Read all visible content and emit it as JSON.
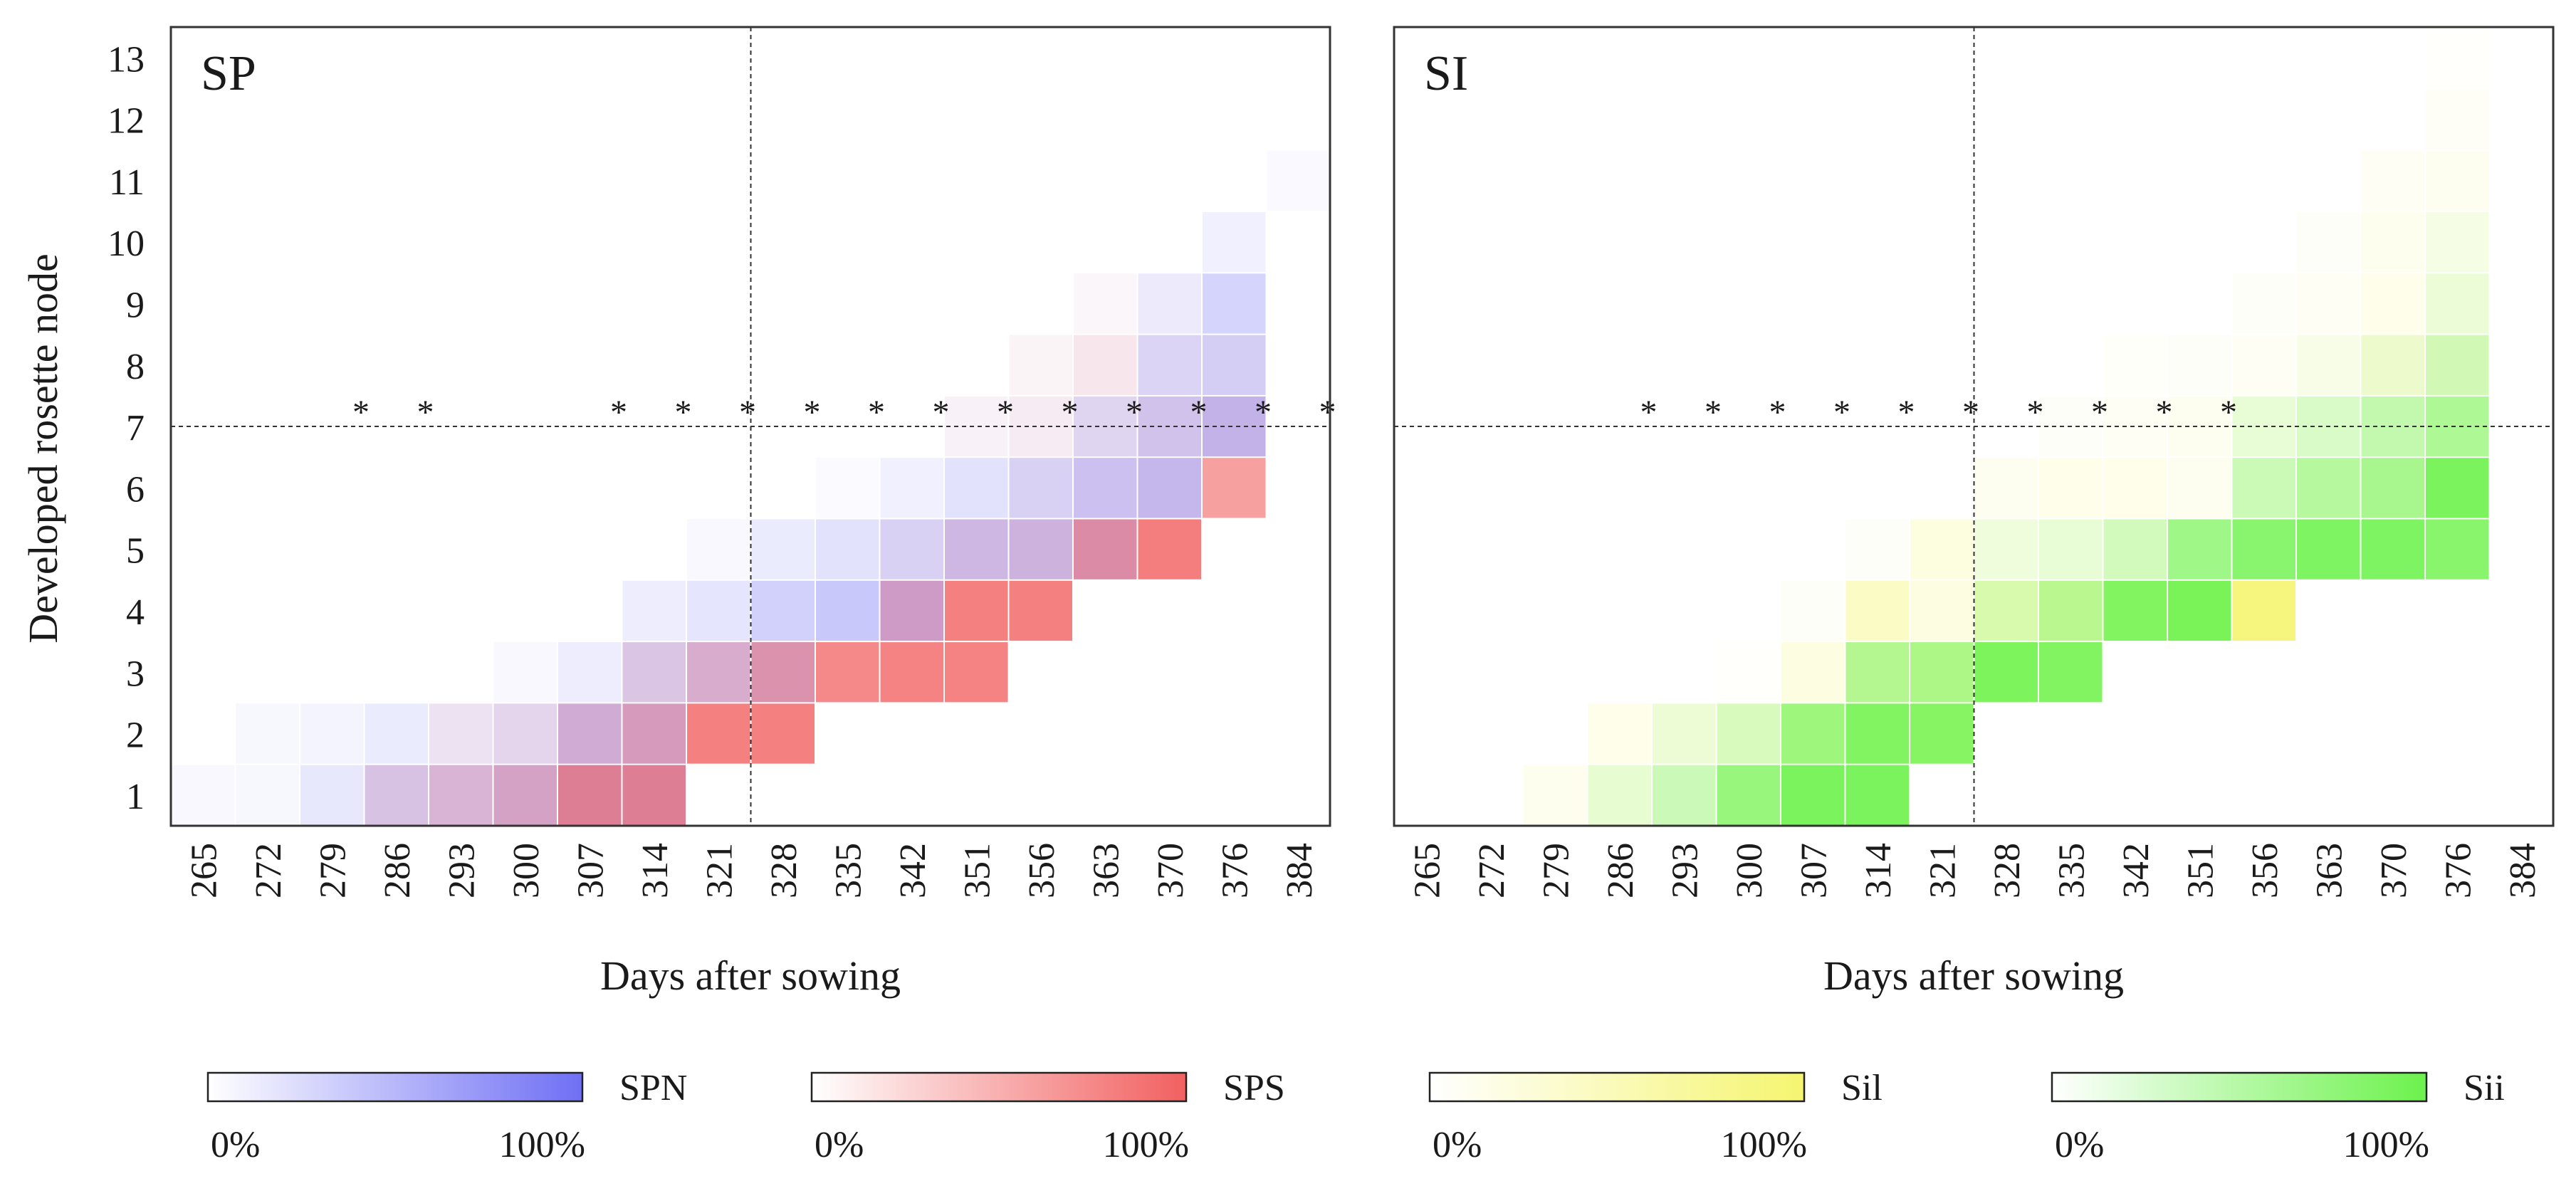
{
  "y_axis_label": "Developed rosette node",
  "x_axis_label": "Days after sowing",
  "y_ticks": [
    "1",
    "2",
    "3",
    "4",
    "5",
    "6",
    "7",
    "8",
    "9",
    "10",
    "11",
    "12",
    "13"
  ],
  "x_ticks": [
    "265",
    "272",
    "279",
    "286",
    "293",
    "300",
    "307",
    "314",
    "321",
    "328",
    "335",
    "342",
    "351",
    "356",
    "363",
    "370",
    "376",
    "384"
  ],
  "chart_data": [
    {
      "type": "heatmap",
      "title": "SP",
      "xlabel": "Days after sowing",
      "ylabel": "Developed rosette node",
      "x": [
        "265",
        "272",
        "279",
        "286",
        "293",
        "300",
        "307",
        "314",
        "321",
        "328",
        "335",
        "342",
        "351",
        "356",
        "363",
        "370",
        "376",
        "384"
      ],
      "y": [
        1,
        2,
        3,
        4,
        5,
        6,
        7,
        8,
        9,
        10,
        11,
        12,
        13
      ],
      "series": [
        {
          "name": "SPN",
          "color": "#6f6ff5",
          "cells": [
            [
              0,
              1,
              0.05
            ],
            [
              1,
              1,
              0.06
            ],
            [
              2,
              1,
              0.16
            ],
            [
              3,
              1,
              0.3
            ],
            [
              4,
              1,
              0.32
            ],
            [
              5,
              1,
              0.4
            ],
            [
              6,
              1,
              0.5
            ],
            [
              7,
              1,
              0.5
            ],
            [
              1,
              2,
              0.06
            ],
            [
              2,
              2,
              0.08
            ],
            [
              3,
              2,
              0.14
            ],
            [
              4,
              2,
              0.12
            ],
            [
              5,
              2,
              0.2
            ],
            [
              6,
              2,
              0.4
            ],
            [
              7,
              2,
              0.42
            ],
            [
              5,
              3,
              0.05
            ],
            [
              6,
              3,
              0.12
            ],
            [
              7,
              3,
              0.28
            ],
            [
              8,
              3,
              0.35
            ],
            [
              9,
              3,
              0.4
            ],
            [
              7,
              4,
              0.12
            ],
            [
              8,
              4,
              0.18
            ],
            [
              9,
              4,
              0.32
            ],
            [
              10,
              4,
              0.38
            ],
            [
              11,
              4,
              0.48
            ],
            [
              8,
              5,
              0.05
            ],
            [
              9,
              5,
              0.14
            ],
            [
              10,
              5,
              0.2
            ],
            [
              11,
              5,
              0.28
            ],
            [
              12,
              5,
              0.38
            ],
            [
              13,
              5,
              0.4
            ],
            [
              14,
              5,
              0.45
            ],
            [
              10,
              6,
              0.03
            ],
            [
              11,
              6,
              0.1
            ],
            [
              12,
              6,
              0.2
            ],
            [
              13,
              6,
              0.28
            ],
            [
              14,
              6,
              0.38
            ],
            [
              15,
              6,
              0.44
            ],
            [
              12,
              7,
              0.04
            ],
            [
              13,
              7,
              0.06
            ],
            [
              14,
              7,
              0.22
            ],
            [
              15,
              7,
              0.35
            ],
            [
              16,
              7,
              0.45
            ],
            [
              13,
              8,
              0.02
            ],
            [
              14,
              8,
              0.04
            ],
            [
              15,
              8,
              0.25
            ],
            [
              16,
              8,
              0.3
            ],
            [
              14,
              9,
              0.02
            ],
            [
              15,
              9,
              0.12
            ],
            [
              16,
              9,
              0.3
            ],
            [
              16,
              10,
              0.1
            ],
            [
              17,
              11,
              0.04
            ]
          ]
        },
        {
          "name": "SPS",
          "color": "#f26060",
          "cells": [
            [
              3,
              1,
              0.15
            ],
            [
              4,
              1,
              0.25
            ],
            [
              5,
              1,
              0.35
            ],
            [
              6,
              1,
              0.65
            ],
            [
              7,
              1,
              0.65
            ],
            [
              4,
              2,
              0.08
            ],
            [
              5,
              2,
              0.1
            ],
            [
              6,
              2,
              0.25
            ],
            [
              7,
              2,
              0.4
            ],
            [
              8,
              2,
              0.8
            ],
            [
              9,
              2,
              0.8
            ],
            [
              7,
              3,
              0.15
            ],
            [
              8,
              3,
              0.3
            ],
            [
              9,
              3,
              0.5
            ],
            [
              10,
              3,
              0.75
            ],
            [
              11,
              3,
              0.78
            ],
            [
              12,
              3,
              0.78
            ],
            [
              11,
              4,
              0.35
            ],
            [
              12,
              4,
              0.8
            ],
            [
              13,
              4,
              0.8
            ],
            [
              11,
              5,
              0.05
            ],
            [
              12,
              5,
              0.15
            ],
            [
              13,
              5,
              0.18
            ],
            [
              14,
              5,
              0.55
            ],
            [
              15,
              5,
              0.82
            ],
            [
              13,
              6,
              0.05
            ],
            [
              14,
              6,
              0.08
            ],
            [
              15,
              6,
              0.1
            ],
            [
              16,
              6,
              0.6
            ],
            [
              12,
              7,
              0.05
            ],
            [
              13,
              7,
              0.08
            ],
            [
              14,
              7,
              0.08
            ],
            [
              15,
              7,
              0.1
            ],
            [
              16,
              7,
              0.12
            ],
            [
              13,
              8,
              0.05
            ],
            [
              14,
              8,
              0.12
            ],
            [
              15,
              8,
              0.05
            ],
            [
              16,
              8,
              0.05
            ],
            [
              14,
              9,
              0.04
            ],
            [
              15,
              9,
              0.02
            ]
          ]
        }
      ],
      "significance_markers": {
        "symbol": "*",
        "y": 7,
        "x": [
          "279",
          "286",
          "307",
          "314",
          "321",
          "328",
          "335",
          "342",
          "351",
          "356",
          "363",
          "370",
          "376",
          "384"
        ]
      },
      "reference_lines": {
        "x_between": [
          "321",
          "328"
        ],
        "y": 7
      }
    },
    {
      "type": "heatmap",
      "title": "SI",
      "xlabel": "Days after sowing",
      "ylabel": "",
      "x": [
        "265",
        "272",
        "279",
        "286",
        "293",
        "300",
        "307",
        "314",
        "321",
        "328",
        "335",
        "342",
        "351",
        "356",
        "363",
        "370",
        "376",
        "384"
      ],
      "y": [
        1,
        2,
        3,
        4,
        5,
        6,
        7,
        8,
        9,
        10,
        11,
        12,
        13
      ],
      "series": [
        {
          "name": "Sil",
          "color": "#f5f570",
          "cells": [
            [
              2,
              1,
              0.12
            ],
            [
              3,
              1,
              0.15
            ],
            [
              4,
              1,
              0.1
            ],
            [
              5,
              1,
              0.1
            ],
            [
              6,
              1,
              0.12
            ],
            [
              7,
              1,
              0.12
            ],
            [
              3,
              2,
              0.15
            ],
            [
              4,
              2,
              0.18
            ],
            [
              5,
              2,
              0.2
            ],
            [
              6,
              2,
              0.25
            ],
            [
              7,
              2,
              0.25
            ],
            [
              8,
              2,
              0.3
            ],
            [
              5,
              3,
              0.03
            ],
            [
              6,
              3,
              0.2
            ],
            [
              7,
              3,
              0.3
            ],
            [
              8,
              3,
              0.35
            ],
            [
              9,
              3,
              0.35
            ],
            [
              10,
              3,
              0.3
            ],
            [
              6,
              4,
              0.05
            ],
            [
              7,
              4,
              0.4
            ],
            [
              8,
              4,
              0.2
            ],
            [
              9,
              4,
              0.35
            ],
            [
              10,
              4,
              0.4
            ],
            [
              11,
              4,
              0.35
            ],
            [
              12,
              4,
              0.35
            ],
            [
              13,
              4,
              0.9
            ],
            [
              7,
              5,
              0.05
            ],
            [
              8,
              5,
              0.22
            ],
            [
              9,
              5,
              0.12
            ],
            [
              10,
              5,
              0.12
            ],
            [
              11,
              5,
              0.12
            ],
            [
              12,
              5,
              0.05
            ],
            [
              13,
              5,
              0.05
            ],
            [
              14,
              5,
              0.05
            ],
            [
              15,
              5,
              0.05
            ],
            [
              16,
              5,
              0.1
            ],
            [
              9,
              6,
              0.1
            ],
            [
              10,
              6,
              0.15
            ],
            [
              11,
              6,
              0.15
            ],
            [
              12,
              6,
              0.1
            ],
            [
              13,
              6,
              0.12
            ],
            [
              14,
              6,
              0.1
            ],
            [
              15,
              6,
              0.1
            ],
            [
              16,
              6,
              0.1
            ],
            [
              10,
              7,
              0.05
            ],
            [
              11,
              7,
              0.08
            ],
            [
              12,
              7,
              0.1
            ],
            [
              13,
              7,
              0.12
            ],
            [
              14,
              7,
              0.1
            ],
            [
              15,
              7,
              0.1
            ],
            [
              16,
              7,
              0.1
            ],
            [
              11,
              8,
              0.04
            ],
            [
              12,
              8,
              0.05
            ],
            [
              13,
              8,
              0.08
            ],
            [
              14,
              8,
              0.1
            ],
            [
              15,
              8,
              0.25
            ],
            [
              16,
              8,
              0.2
            ],
            [
              13,
              9,
              0.05
            ],
            [
              14,
              9,
              0.08
            ],
            [
              15,
              9,
              0.15
            ],
            [
              16,
              9,
              0.15
            ],
            [
              14,
              10,
              0.05
            ],
            [
              15,
              10,
              0.12
            ],
            [
              16,
              10,
              0.1
            ],
            [
              15,
              11,
              0.08
            ],
            [
              16,
              11,
              0.1
            ],
            [
              16,
              12,
              0.06
            ],
            [
              16,
              13,
              0.03
            ]
          ]
        },
        {
          "name": "Sii",
          "color": "#6cf24c",
          "cells": [
            [
              3,
              1,
              0.15
            ],
            [
              4,
              1,
              0.35
            ],
            [
              5,
              1,
              0.7
            ],
            [
              6,
              1,
              0.9
            ],
            [
              7,
              1,
              0.9
            ],
            [
              4,
              2,
              0.1
            ],
            [
              5,
              2,
              0.25
            ],
            [
              6,
              2,
              0.65
            ],
            [
              7,
              2,
              0.85
            ],
            [
              8,
              2,
              0.82
            ],
            [
              7,
              3,
              0.5
            ],
            [
              8,
              3,
              0.55
            ],
            [
              9,
              3,
              0.88
            ],
            [
              10,
              3,
              0.85
            ],
            [
              9,
              4,
              0.25
            ],
            [
              10,
              4,
              0.45
            ],
            [
              11,
              4,
              0.85
            ],
            [
              12,
              4,
              0.9
            ],
            [
              9,
              5,
              0.1
            ],
            [
              10,
              5,
              0.15
            ],
            [
              11,
              5,
              0.3
            ],
            [
              12,
              5,
              0.65
            ],
            [
              13,
              5,
              0.8
            ],
            [
              14,
              5,
              0.88
            ],
            [
              15,
              5,
              0.88
            ],
            [
              16,
              5,
              0.8
            ],
            [
              13,
              6,
              0.35
            ],
            [
              14,
              6,
              0.5
            ],
            [
              15,
              6,
              0.6
            ],
            [
              16,
              6,
              0.9
            ],
            [
              13,
              7,
              0.15
            ],
            [
              14,
              7,
              0.25
            ],
            [
              15,
              7,
              0.4
            ],
            [
              16,
              7,
              0.55
            ],
            [
              14,
              8,
              0.05
            ],
            [
              15,
              8,
              0.1
            ],
            [
              16,
              8,
              0.3
            ],
            [
              16,
              9,
              0.12
            ],
            [
              16,
              10,
              0.06
            ]
          ]
        }
      ],
      "significance_markers": {
        "symbol": "*",
        "y": 7,
        "x": [
          "286",
          "293",
          "300",
          "307",
          "314",
          "321",
          "328",
          "335",
          "342",
          "351"
        ]
      },
      "reference_lines": {
        "x_between": [
          "321",
          "328"
        ],
        "y": 7
      }
    }
  ],
  "legend": [
    {
      "name": "SPN",
      "color": "#6f6ff5",
      "min_label": "0%",
      "max_label": "100%"
    },
    {
      "name": "SPS",
      "color": "#f26060",
      "min_label": "0%",
      "max_label": "100%"
    },
    {
      "name": "Sil",
      "color": "#f5f570",
      "min_label": "0%",
      "max_label": "100%"
    },
    {
      "name": "Sii",
      "color": "#6cf24c",
      "min_label": "0%",
      "max_label": "100%"
    }
  ]
}
